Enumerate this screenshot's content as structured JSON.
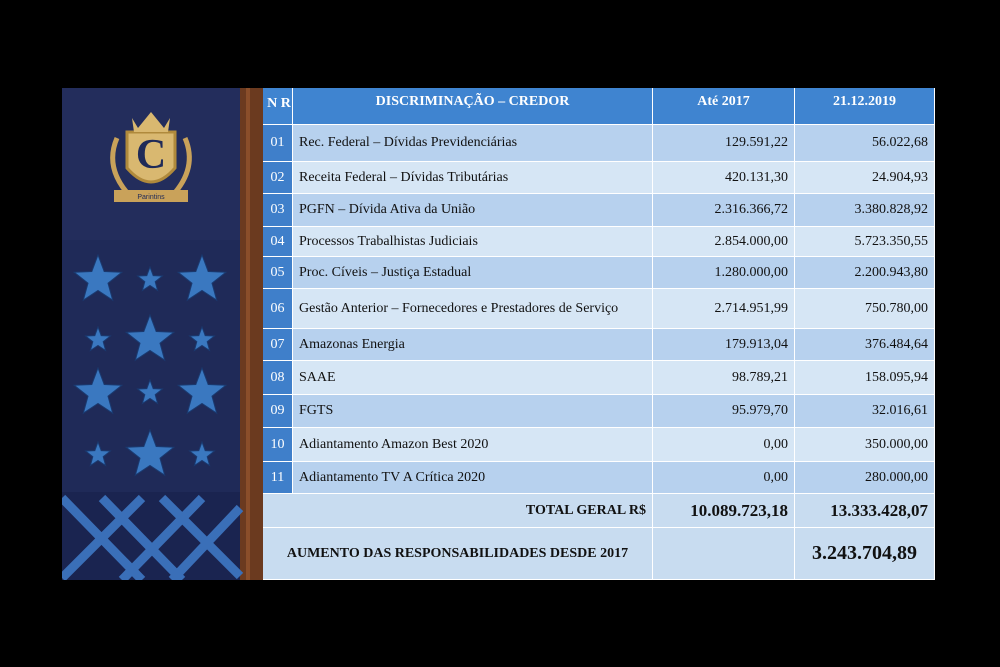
{
  "emblem": {
    "letter": "C",
    "motto": "Parintins"
  },
  "table": {
    "headers": [
      "N R",
      "DISCRIMINAÇÃO – CREDOR",
      "Até 2017",
      "21.12.2019"
    ],
    "rows": [
      [
        "01",
        "Rec. Federal – Dívidas Previdenciárias",
        "129.591,22",
        "56.022,68"
      ],
      [
        "02",
        "Receita Federal – Dívidas Tributárias",
        "420.131,30",
        "24.904,93"
      ],
      [
        "03",
        "PGFN – Dívida Ativa da União",
        "2.316.366,72",
        "3.380.828,92"
      ],
      [
        "04",
        "Processos Trabalhistas Judiciais",
        "2.854.000,00",
        "5.723.350,55"
      ],
      [
        "05",
        "Proc. Cíveis – Justiça Estadual",
        "1.280.000,00",
        "2.200.943,80"
      ],
      [
        "06",
        "Gestão Anterior – Fornecedores e Prestadores de Serviço",
        "2.714.951,99",
        "750.780,00"
      ],
      [
        "07",
        "Amazonas Energia",
        "179.913,04",
        "376.484,64"
      ],
      [
        "08",
        "SAAE",
        "98.789,21",
        "158.095,94"
      ],
      [
        "09",
        "FGTS",
        "95.979,70",
        "32.016,61"
      ],
      [
        "10",
        "Adiantamento Amazon Best 2020",
        "0,00",
        "350.000,00"
      ],
      [
        "11",
        "Adiantamento TV A Crítica 2020",
        "0,00",
        "280.000,00"
      ]
    ],
    "total": {
      "label": "TOTAL GERAL R$",
      "values": [
        "10.089.723,18",
        "13.333.428,07"
      ]
    },
    "increase": {
      "label": "AUMENTO DAS RESPONSABILIDADES DESDE 2017",
      "value": "3.243.704,89"
    }
  }
}
